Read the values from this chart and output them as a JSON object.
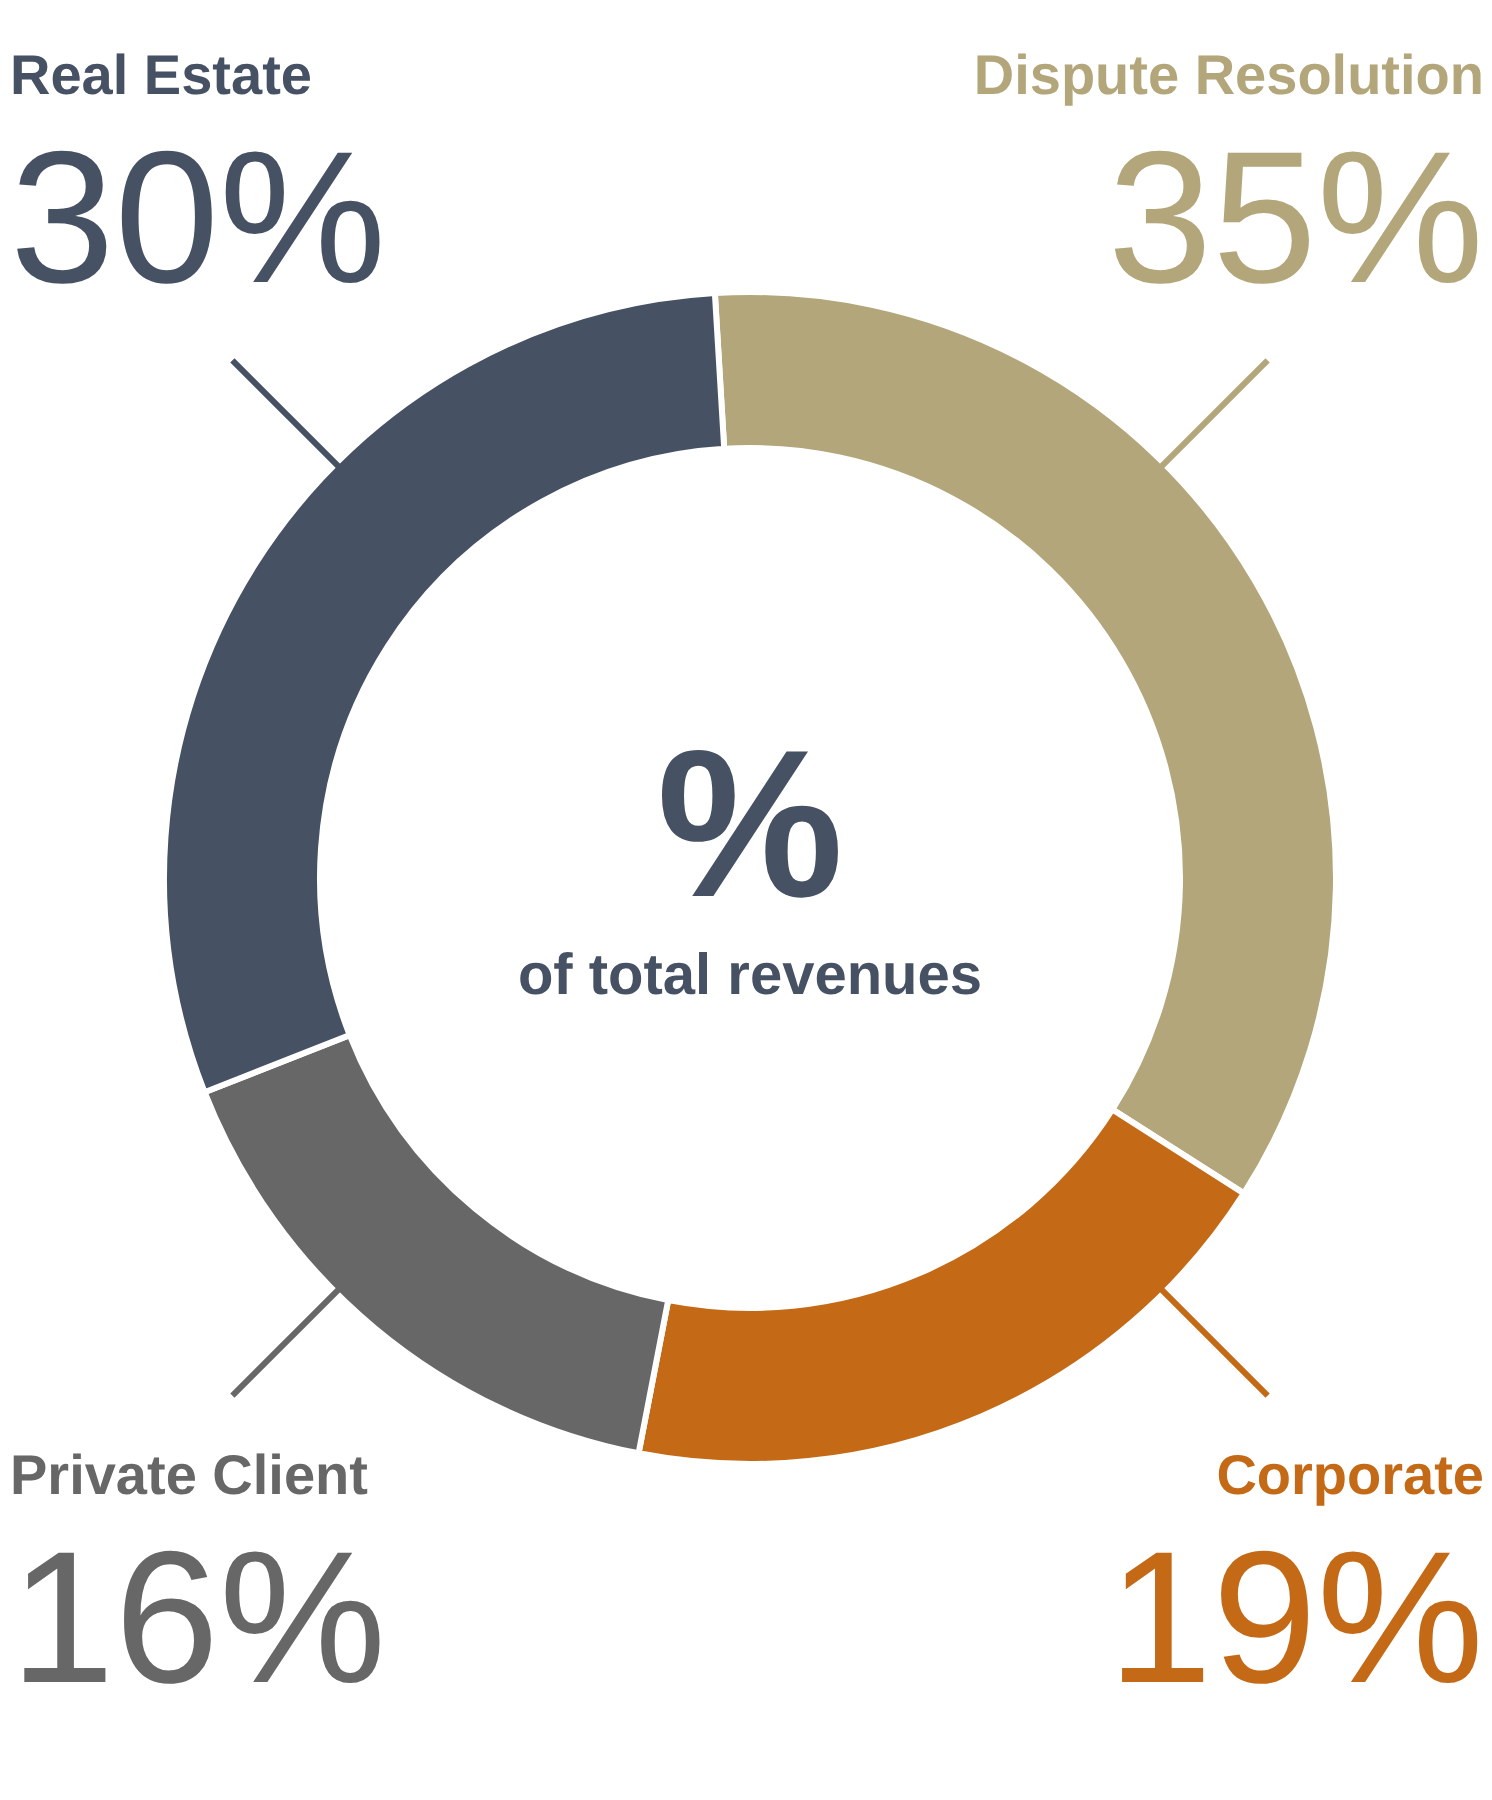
{
  "chart_data": {
    "type": "donut",
    "categories": [
      "Dispute Resolution",
      "Corporate",
      "Private Client",
      "Real Estate"
    ],
    "values": [
      35,
      19,
      16,
      30
    ],
    "colors": [
      "#b3a67a",
      "#c46a17",
      "#676767",
      "#465264"
    ],
    "value_labels": [
      "35%",
      "19%",
      "16%",
      "30%"
    ],
    "annotations": [
      "%",
      "of total revenues"
    ]
  }
}
